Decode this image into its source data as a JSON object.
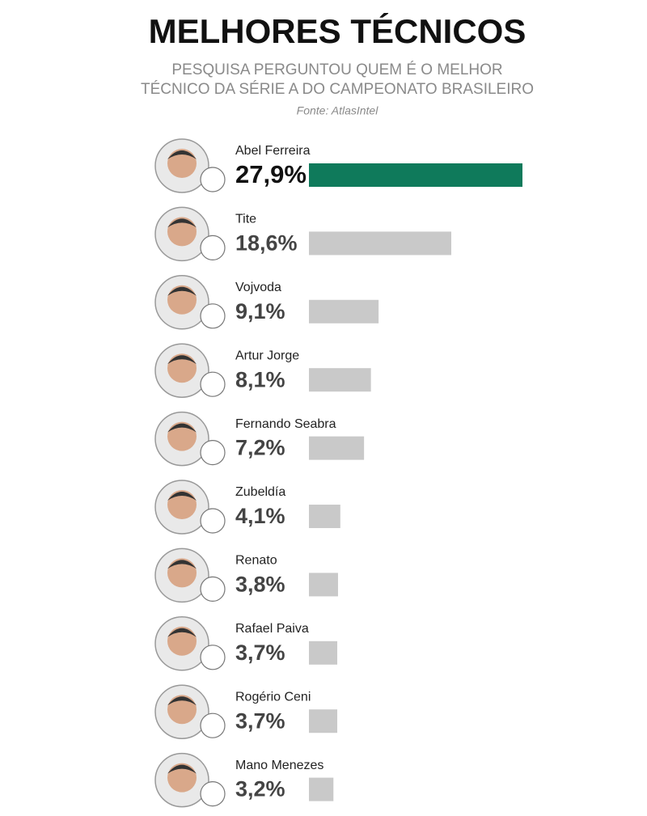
{
  "chart_data": {
    "type": "bar",
    "orientation": "horizontal",
    "title": "MELHORES TÉCNICOS",
    "subtitle": [
      "PESQUISA PERGUNTOU QUEM É O MELHOR",
      "TÉCNICO DA SÉRIE A DO CAMPEONATO BRASILEIRO"
    ],
    "source": "Fonte: AtlasIntel",
    "categories": [
      "Abel Ferreira",
      "Tite",
      "Vojvoda",
      "Artur Jorge",
      "Fernando Seabra",
      "Zubeldía",
      "Renato",
      "Rafael Paiva",
      "Rogério Ceni",
      "Mano Menezes"
    ],
    "values": [
      27.9,
      18.6,
      9.1,
      8.1,
      7.2,
      4.1,
      3.8,
      3.7,
      3.7,
      3.2
    ],
    "value_labels": [
      "27,9%",
      "18,6%",
      "9,1%",
      "8,1%",
      "7,2%",
      "4,1%",
      "3,8%",
      "3,7%",
      "3,7%",
      "3,2%"
    ],
    "colors": [
      "#0f7a5b",
      "#c9c9c9",
      "#c9c9c9",
      "#c9c9c9",
      "#c9c9c9",
      "#c9c9c9",
      "#c9c9c9",
      "#c9c9c9",
      "#c9c9c9",
      "#c9c9c9"
    ]
  }
}
